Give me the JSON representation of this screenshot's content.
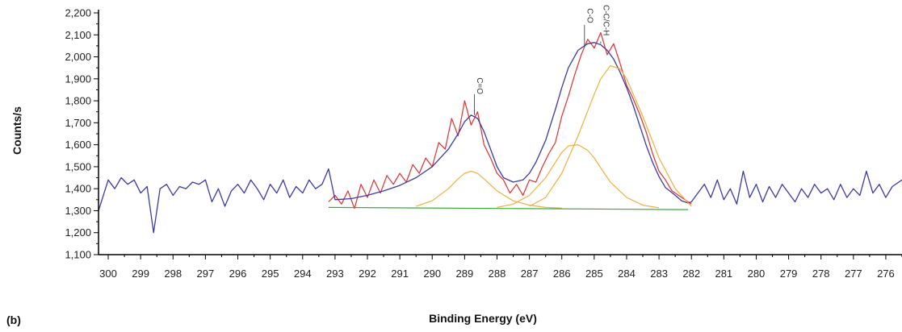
{
  "panel_label": "(b)",
  "chart_data": {
    "type": "line",
    "xlabel": "Binding Energy (eV)",
    "ylabel": "Counts/s",
    "xlim": [
      300.3,
      275.5
    ],
    "ylim": [
      1100,
      2200
    ],
    "x_reversed": true,
    "x_ticks": [
      300,
      299,
      298,
      297,
      296,
      295,
      294,
      293,
      292,
      291,
      290,
      289,
      288,
      287,
      286,
      285,
      284,
      283,
      282,
      281,
      280,
      279,
      278,
      277,
      276
    ],
    "y_ticks": [
      1100,
      1200,
      1300,
      1400,
      1500,
      1600,
      1700,
      1800,
      1900,
      2000,
      2100,
      2200
    ],
    "y_tick_labels": [
      "1,100",
      "1,200",
      "1,300",
      "1,400",
      "1,500",
      "1,600",
      "1,700",
      "1,800",
      "1,900",
      "2,000",
      "2,100",
      "2,200"
    ],
    "grid": false,
    "peak_annotations": [
      {
        "label": "C=O",
        "x": 288.7,
        "y": 1735
      },
      {
        "label": "C-O",
        "x": 285.3,
        "y": 2050
      },
      {
        "label": "C-C/C-H",
        "x": 284.8,
        "y": 2060
      }
    ],
    "series": [
      {
        "role": "raw",
        "color": "#e03030",
        "x": [
          293.2,
          293.0,
          292.8,
          292.6,
          292.4,
          292.2,
          292.0,
          291.8,
          291.6,
          291.4,
          291.2,
          291.0,
          290.8,
          290.6,
          290.4,
          290.2,
          290.0,
          289.8,
          289.6,
          289.4,
          289.2,
          289.0,
          288.8,
          288.6,
          288.4,
          288.2,
          288.0,
          287.8,
          287.6,
          287.4,
          287.2,
          287.0,
          286.8,
          286.6,
          286.4,
          286.2,
          286.0,
          285.8,
          285.6,
          285.4,
          285.2,
          285.0,
          284.8,
          284.6,
          284.4,
          284.2,
          284.0,
          283.8,
          283.6,
          283.4,
          283.2,
          283.0,
          282.8,
          282.6,
          282.4,
          282.2,
          282.0
        ],
        "values": [
          1340,
          1370,
          1330,
          1390,
          1310,
          1420,
          1360,
          1440,
          1380,
          1460,
          1420,
          1470,
          1430,
          1510,
          1470,
          1540,
          1500,
          1610,
          1580,
          1720,
          1640,
          1800,
          1690,
          1750,
          1600,
          1540,
          1470,
          1440,
          1380,
          1420,
          1370,
          1440,
          1430,
          1500,
          1560,
          1610,
          1730,
          1820,
          1920,
          2010,
          2080,
          2040,
          2110,
          2010,
          2060,
          1970,
          1870,
          1810,
          1740,
          1660,
          1560,
          1480,
          1440,
          1390,
          1370,
          1350,
          1330
        ]
      },
      {
        "role": "envelope",
        "color": "#3a3aa8",
        "x": [
          300.3,
          300.0,
          299.8,
          299.6,
          299.4,
          299.2,
          299.0,
          298.8,
          298.6,
          298.4,
          298.2,
          298.0,
          297.8,
          297.6,
          297.4,
          297.2,
          297.0,
          296.8,
          296.6,
          296.4,
          296.2,
          296.0,
          295.8,
          295.6,
          295.4,
          295.2,
          295.0,
          294.8,
          294.6,
          294.4,
          294.2,
          294.0,
          293.8,
          293.6,
          293.4,
          293.2,
          293.0,
          292.5,
          292.0,
          291.5,
          291.0,
          290.5,
          290.0,
          289.5,
          289.2,
          289.0,
          288.8,
          288.6,
          288.4,
          288.2,
          288.0,
          287.8,
          287.5,
          287.2,
          287.0,
          286.8,
          286.5,
          286.2,
          286.0,
          285.8,
          285.5,
          285.2,
          285.0,
          284.8,
          284.6,
          284.4,
          284.2,
          284.0,
          283.8,
          283.6,
          283.4,
          283.2,
          283.0,
          282.8,
          282.5,
          282.3,
          282.1,
          282.0,
          281.8,
          281.6,
          281.4,
          281.2,
          281.0,
          280.8,
          280.6,
          280.4,
          280.2,
          280.0,
          279.8,
          279.6,
          279.4,
          279.2,
          279.0,
          278.8,
          278.6,
          278.4,
          278.2,
          278.0,
          277.8,
          277.6,
          277.4,
          277.2,
          277.0,
          276.8,
          276.6,
          276.4,
          276.2,
          276.0,
          275.8,
          275.5
        ],
        "values": [
          1300,
          1440,
          1400,
          1450,
          1420,
          1440,
          1380,
          1410,
          1200,
          1400,
          1420,
          1370,
          1410,
          1400,
          1430,
          1420,
          1440,
          1340,
          1400,
          1320,
          1390,
          1420,
          1380,
          1440,
          1400,
          1350,
          1420,
          1380,
          1440,
          1360,
          1410,
          1380,
          1440,
          1400,
          1420,
          1490,
          1350,
          1355,
          1370,
          1390,
          1415,
          1450,
          1500,
          1580,
          1650,
          1705,
          1735,
          1720,
          1660,
          1580,
          1500,
          1450,
          1430,
          1440,
          1470,
          1520,
          1620,
          1760,
          1860,
          1950,
          2030,
          2060,
          2065,
          2055,
          2030,
          1990,
          1930,
          1860,
          1780,
          1690,
          1600,
          1520,
          1455,
          1405,
          1370,
          1345,
          1335,
          1340,
          1380,
          1420,
          1360,
          1440,
          1350,
          1400,
          1330,
          1480,
          1360,
          1420,
          1340,
          1410,
          1360,
          1420,
          1380,
          1340,
          1400,
          1360,
          1420,
          1380,
          1400,
          1350,
          1420,
          1360,
          1400,
          1370,
          1480,
          1380,
          1420,
          1360,
          1410,
          1440
        ]
      },
      {
        "role": "component",
        "color": "#f0b040",
        "x": [
          290.5,
          290.0,
          289.5,
          289.2,
          289.0,
          288.8,
          288.6,
          288.4,
          288.0,
          287.5,
          287.0,
          286.5,
          286.0
        ],
        "values": [
          1320,
          1345,
          1400,
          1445,
          1470,
          1480,
          1470,
          1445,
          1390,
          1345,
          1325,
          1315,
          1312
        ]
      },
      {
        "role": "component",
        "color": "#f0b040",
        "x": [
          288.0,
          287.5,
          287.0,
          286.5,
          286.2,
          286.0,
          285.8,
          285.5,
          285.2,
          285.0,
          284.8,
          284.5,
          284.0,
          283.5,
          283.0
        ],
        "values": [
          1315,
          1330,
          1370,
          1450,
          1520,
          1565,
          1595,
          1600,
          1575,
          1540,
          1495,
          1430,
          1360,
          1325,
          1313
        ]
      },
      {
        "role": "component",
        "color": "#f0b040",
        "x": [
          287.0,
          286.5,
          286.0,
          285.5,
          285.0,
          284.8,
          284.5,
          284.2,
          284.0,
          283.5,
          283.0,
          282.5,
          282.0
        ],
        "values": [
          1320,
          1360,
          1470,
          1640,
          1830,
          1900,
          1960,
          1945,
          1900,
          1730,
          1540,
          1400,
          1320
        ]
      },
      {
        "role": "background",
        "color": "#3aaa3a",
        "x": [
          293.2,
          282.1
        ],
        "values": [
          1315,
          1305
        ]
      }
    ]
  }
}
